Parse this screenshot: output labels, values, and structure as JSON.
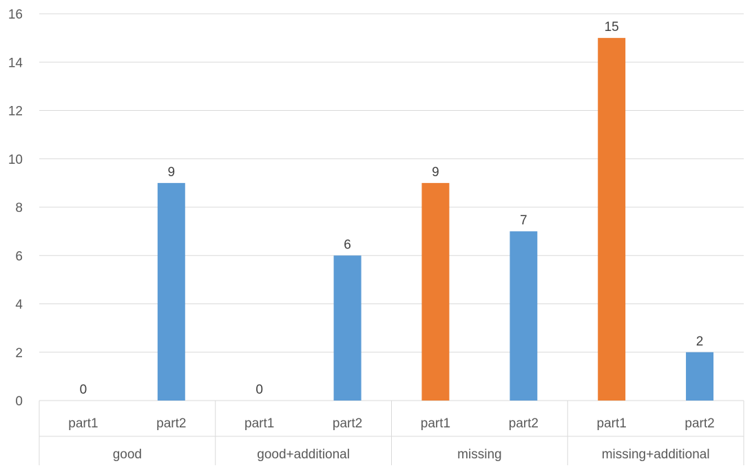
{
  "chart_data": {
    "type": "bar",
    "title": "",
    "xlabel": "",
    "ylabel": "",
    "ylim": [
      0,
      16
    ],
    "y_ticks": [
      0,
      2,
      4,
      6,
      8,
      10,
      12,
      14,
      16
    ],
    "grid": true,
    "groups": [
      "good",
      "good+additional",
      "missing",
      "missing+additional"
    ],
    "subcategories": [
      "part1",
      "part2"
    ],
    "bars": [
      {
        "group": "good",
        "sub": "part1",
        "value": 0,
        "color": "#ED7D31"
      },
      {
        "group": "good",
        "sub": "part2",
        "value": 9,
        "color": "#5B9BD5"
      },
      {
        "group": "good+additional",
        "sub": "part1",
        "value": 0,
        "color": "#ED7D31"
      },
      {
        "group": "good+additional",
        "sub": "part2",
        "value": 6,
        "color": "#5B9BD5"
      },
      {
        "group": "missing",
        "sub": "part1",
        "value": 9,
        "color": "#ED7D31"
      },
      {
        "group": "missing",
        "sub": "part2",
        "value": 7,
        "color": "#5B9BD5"
      },
      {
        "group": "missing+additional",
        "sub": "part1",
        "value": 15,
        "color": "#ED7D31"
      },
      {
        "group": "missing+additional",
        "sub": "part2",
        "value": 2,
        "color": "#5B9BD5"
      }
    ],
    "colors": {
      "part1": "#ED7D31",
      "part2": "#5B9BD5",
      "grid": "#D9D9D9",
      "axis_text": "#595959"
    }
  }
}
